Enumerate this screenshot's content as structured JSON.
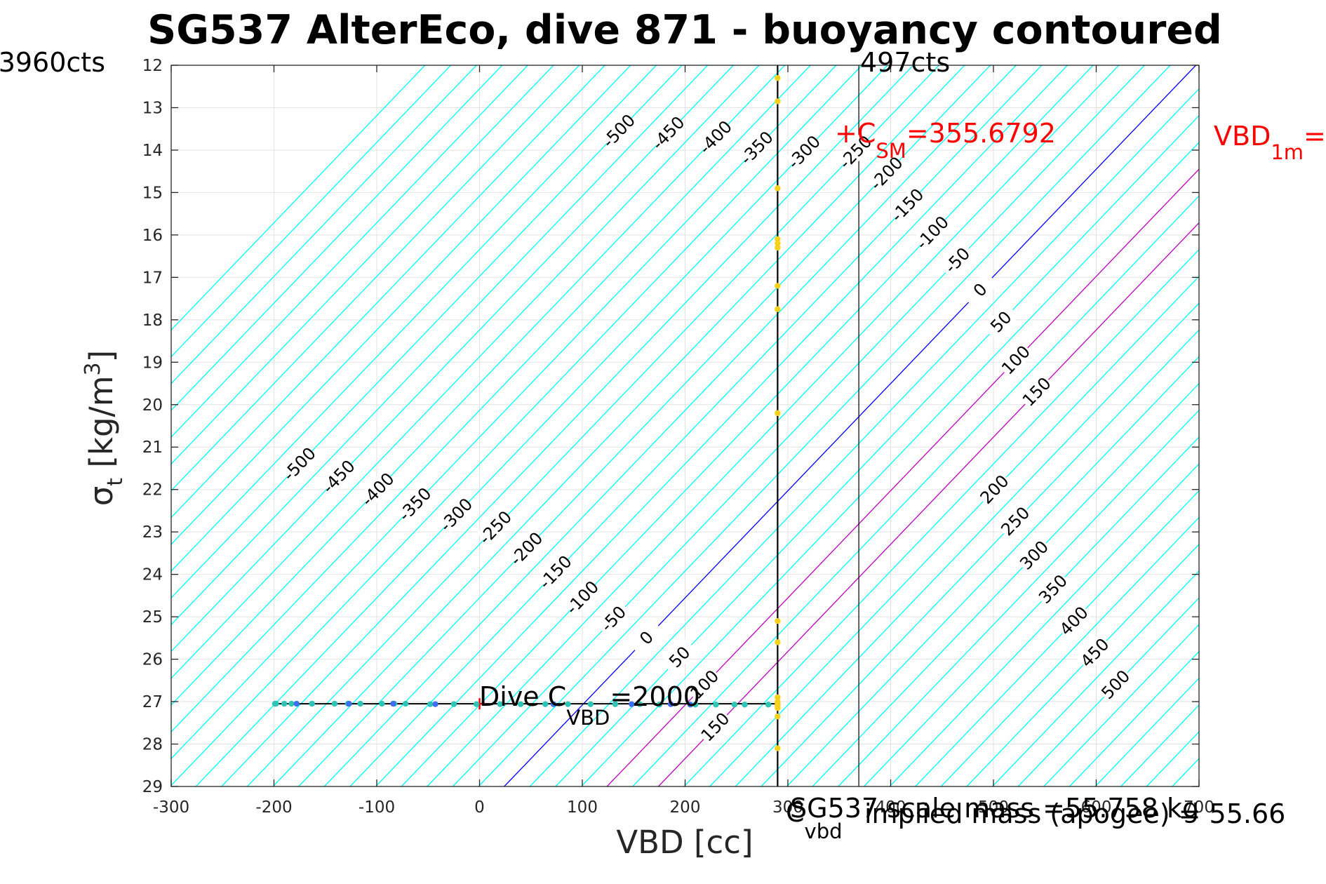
{
  "chart_data": {
    "type": "line",
    "title": "SG537 AlterEco, dive 871 - buoyancy contoured",
    "xlabel": "VBD [cc]",
    "ylabel": "σ_t [kg/m^3]",
    "xlim": [
      -300,
      700
    ],
    "ylim": [
      12,
      29
    ],
    "y_reversed": true,
    "grid": true,
    "x_ticks": [
      -300,
      -200,
      -100,
      0,
      100,
      200,
      300,
      400,
      500,
      600,
      700
    ],
    "y_ticks": [
      12,
      13,
      14,
      15,
      16,
      17,
      18,
      19,
      20,
      21,
      22,
      23,
      24,
      25,
      26,
      27,
      28,
      29
    ],
    "x_tick_labels": [
      "-300",
      "-200",
      "-100",
      "0",
      "100",
      "200",
      "300",
      "400",
      "500",
      "600",
      "700"
    ],
    "y_tick_labels": [
      "12",
      "13",
      "14",
      "15",
      "16",
      "17",
      "18",
      "19",
      "20",
      "21",
      "22",
      "23",
      "24",
      "25",
      "26",
      "27",
      "28",
      "29"
    ],
    "contours": {
      "reference_line_zero": {
        "x_at_y29": 24,
        "x_at_y12": 697,
        "color": "#0000ff"
      },
      "cyan_levels": [
        -500,
        -450,
        -400,
        -350,
        -300,
        -250,
        -200,
        -150,
        -100,
        -50,
        50,
        250,
        300,
        350,
        400,
        450,
        500
      ],
      "magenta_levels": [
        100,
        150
      ],
      "spacing_x_per_50": 50,
      "cyan_color": "#00ffff",
      "magenta_color": "#bf00bf"
    },
    "contour_labels_lower": [
      "-500",
      "-450",
      "-400",
      "-350",
      "-300",
      "-250",
      "-200",
      "-150",
      "-100",
      "-50",
      "0",
      "50",
      "100",
      "150"
    ],
    "contour_labels_upper_left": [
      "-500",
      "-450",
      "-400",
      "-350",
      "-300",
      "-250",
      "-200",
      "-150",
      "-100",
      "-50",
      "0",
      "50",
      "100",
      "150"
    ],
    "contour_labels_lower_right": [
      "200",
      "250",
      "300",
      "350",
      "400",
      "450",
      "500"
    ],
    "vertical_lines": [
      {
        "x": 290,
        "color": "#000000",
        "width": 2.2
      },
      {
        "x": 369,
        "color": "#000000",
        "width": 1.2
      }
    ],
    "dive_line": {
      "x": [
        -200,
        290
      ],
      "y": [
        27.05,
        27.05
      ],
      "color": "#000000"
    },
    "red_marker": {
      "x": 0,
      "y": 27.05,
      "symbol": "+"
    },
    "series": [
      {
        "marker_color": "#2ec4b6",
        "points": [
          [
            -199,
            27.05
          ],
          [
            -198,
            27.05
          ],
          [
            -190,
            27.05
          ],
          [
            -183,
            27.05
          ],
          [
            -163,
            27.05
          ],
          [
            -141,
            27.05
          ],
          [
            -128,
            27.05
          ],
          [
            -116,
            27.05
          ],
          [
            -95,
            27.05
          ],
          [
            -83,
            27.05
          ],
          [
            -72,
            27.05
          ],
          [
            -48,
            27.06
          ],
          [
            -25,
            27.06
          ],
          [
            -3,
            27.06
          ],
          [
            20,
            27.06
          ],
          [
            40,
            27.06
          ],
          [
            64,
            27.06
          ],
          [
            86,
            27.06
          ],
          [
            108,
            27.06
          ],
          [
            132,
            27.06
          ],
          [
            156,
            27.06
          ],
          [
            175,
            27.07
          ],
          [
            210,
            27.07
          ],
          [
            230,
            27.07
          ],
          [
            248,
            27.07
          ],
          [
            258,
            27.07
          ],
          [
            281,
            27.07
          ]
        ]
      },
      {
        "marker_color": "#3e6ff0",
        "points": [
          [
            -178,
            27.05
          ],
          [
            -127,
            27.05
          ],
          [
            -84,
            27.05
          ],
          [
            -43,
            27.06
          ],
          [
            72,
            27.06
          ],
          [
            148,
            27.06
          ],
          [
            186,
            27.06
          ],
          [
            205,
            27.07
          ]
        ]
      },
      {
        "marker_color": "#f4d11c",
        "points": [
          [
            290,
            12.3
          ],
          [
            290,
            12.85
          ],
          [
            290,
            14.9
          ],
          [
            290,
            16.1
          ],
          [
            290,
            16.2
          ],
          [
            290,
            16.3
          ],
          [
            290,
            17.2
          ],
          [
            290,
            17.75
          ],
          [
            290,
            20.2
          ],
          [
            290,
            25.1
          ],
          [
            290,
            25.6
          ],
          [
            290,
            26.9
          ],
          [
            290,
            27.0
          ],
          [
            290,
            27.05
          ],
          [
            290,
            27.1
          ],
          [
            290,
            27.15
          ],
          [
            290,
            27.35
          ],
          [
            290,
            28.1
          ]
        ]
      }
    ],
    "annotations": {
      "left_counts": "3960cts",
      "right_counts": "497cts",
      "dive_cvbd_main": "Dive C",
      "dive_cvbd_sub": "VBD",
      "dive_cvbd_val": "=2000",
      "c_sm_main": "+C",
      "c_sm_sub": "SM",
      "c_sm_val": "=355.6792",
      "vbd1m_main": "VBD",
      "vbd1m_sub": "1m",
      "vbd1m_val": "=",
      "cg_main": "C",
      "cg_sub": "vbd",
      "scale_mass_text": "SG537 scale mass =55.758 kg",
      "implied_mass_text": "implied mass (apogee) = 55.66"
    }
  }
}
